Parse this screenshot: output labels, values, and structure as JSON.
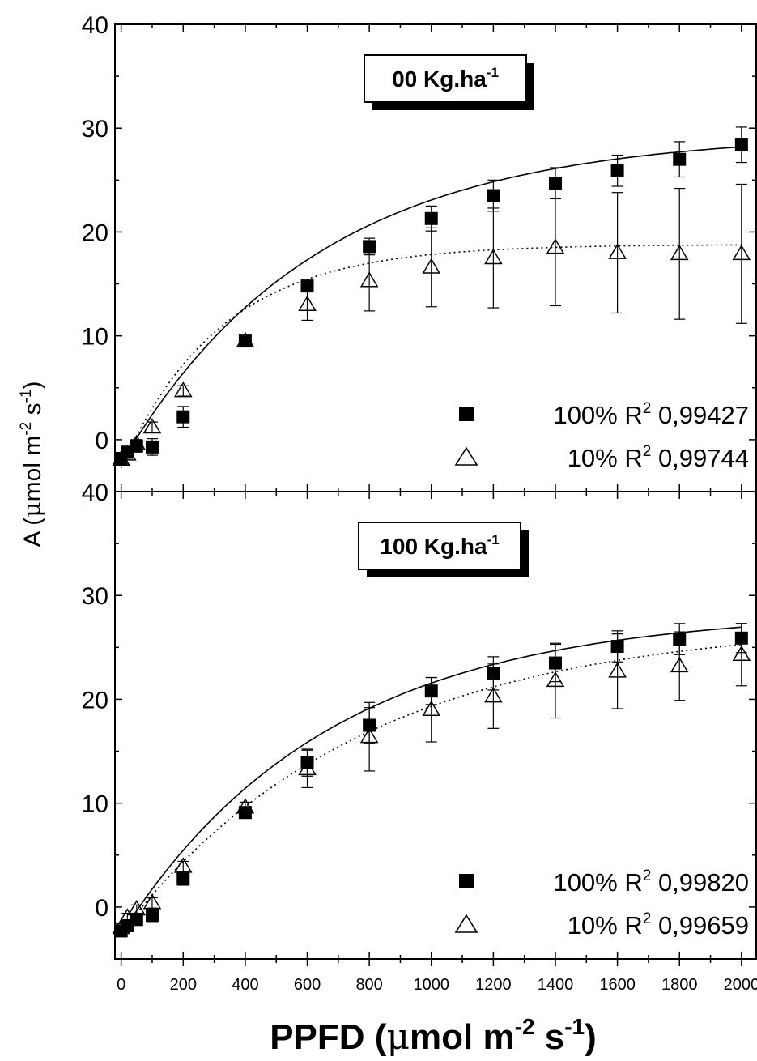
{
  "chart_data": [
    {
      "type": "scatter",
      "panel_label": "00 Kg.ha",
      "panel_label_sup": "-1",
      "ylim": [
        -5,
        40
      ],
      "xlim": [
        -20,
        2050
      ],
      "yticks": [
        "0",
        "10",
        "20",
        "30",
        "40"
      ],
      "xticks": [],
      "series": [
        {
          "name": "100%",
          "r2_label": "R",
          "r2_sup": "2",
          "r2_value": "0,99427",
          "marker": "filled-square",
          "line": "solid",
          "points": [
            {
              "x": 0,
              "y": -1.8,
              "err": 0.5
            },
            {
              "x": 20,
              "y": -1.2,
              "err": 0.5
            },
            {
              "x": 50,
              "y": -0.6,
              "err": 0.6
            },
            {
              "x": 100,
              "y": -0.7,
              "err": 0.8
            },
            {
              "x": 200,
              "y": 2.2,
              "err": 1.0
            },
            {
              "x": 400,
              "y": 9.5,
              "err": 0.5
            },
            {
              "x": 600,
              "y": 14.8,
              "err": 0.4
            },
            {
              "x": 800,
              "y": 18.6,
              "err": 0.8
            },
            {
              "x": 1000,
              "y": 21.3,
              "err": 1.2
            },
            {
              "x": 1200,
              "y": 23.5,
              "err": 1.5
            },
            {
              "x": 1400,
              "y": 24.7,
              "err": 1.5
            },
            {
              "x": 1600,
              "y": 25.9,
              "err": 1.5
            },
            {
              "x": 1800,
              "y": 27.0,
              "err": 1.7
            },
            {
              "x": 2000,
              "y": 28.4,
              "err": 1.7
            }
          ],
          "fit": {
            "amax": 29.5,
            "rd": 2.3,
            "k": 0.0016
          }
        },
        {
          "name": "10%",
          "r2_label": "R",
          "r2_sup": "2",
          "r2_value": "0,99744",
          "marker": "open-triangle",
          "line": "dotted",
          "points": [
            {
              "x": 0,
              "y": -1.9,
              "err": 0.4
            },
            {
              "x": 20,
              "y": -1.4,
              "err": 0.4
            },
            {
              "x": 50,
              "y": -0.4,
              "err": 0.4
            },
            {
              "x": 100,
              "y": 1.2,
              "err": 0.5
            },
            {
              "x": 200,
              "y": 4.7,
              "err": 0.5
            },
            {
              "x": 400,
              "y": 9.5,
              "err": 0.5
            },
            {
              "x": 600,
              "y": 13.0,
              "err": 1.5
            },
            {
              "x": 800,
              "y": 15.3,
              "err": 2.9
            },
            {
              "x": 1000,
              "y": 16.6,
              "err": 3.8
            },
            {
              "x": 1200,
              "y": 17.5,
              "err": 4.8
            },
            {
              "x": 1400,
              "y": 18.5,
              "err": 5.6
            },
            {
              "x": 1600,
              "y": 18.0,
              "err": 5.8
            },
            {
              "x": 1800,
              "y": 17.9,
              "err": 6.3
            },
            {
              "x": 2000,
              "y": 17.9,
              "err": 6.7
            }
          ],
          "fit": {
            "amax": 18.8,
            "rd": 2.7,
            "k": 0.0031
          }
        }
      ]
    },
    {
      "type": "scatter",
      "panel_label": "100 Kg.ha",
      "panel_label_sup": "-1",
      "ylim": [
        -5,
        40
      ],
      "xlim": [
        -20,
        2050
      ],
      "yticks": [
        "0",
        "10",
        "20",
        "30",
        "40"
      ],
      "xticks": [
        "0",
        "200",
        "400",
        "600",
        "800",
        "1000",
        "1200",
        "1400",
        "1600",
        "1800",
        "2000"
      ],
      "series": [
        {
          "name": "100%",
          "r2_label": "R",
          "r2_sup": "2",
          "r2_value": "0,99820",
          "marker": "filled-square",
          "line": "solid",
          "points": [
            {
              "x": 0,
              "y": -2.3,
              "err": 0.5
            },
            {
              "x": 20,
              "y": -1.8,
              "err": 0.5
            },
            {
              "x": 50,
              "y": -1.2,
              "err": 0.5
            },
            {
              "x": 100,
              "y": -0.8,
              "err": 0.6
            },
            {
              "x": 200,
              "y": 2.7,
              "err": 0.6
            },
            {
              "x": 400,
              "y": 9.1,
              "err": 0.5
            },
            {
              "x": 600,
              "y": 13.9,
              "err": 1.3
            },
            {
              "x": 800,
              "y": 17.5,
              "err": 1.7
            },
            {
              "x": 1000,
              "y": 20.8,
              "err": 1.3
            },
            {
              "x": 1200,
              "y": 22.5,
              "err": 1.6
            },
            {
              "x": 1400,
              "y": 23.5,
              "err": 1.8
            },
            {
              "x": 1600,
              "y": 25.1,
              "err": 1.5
            },
            {
              "x": 1800,
              "y": 25.8,
              "err": 1.5
            },
            {
              "x": 2000,
              "y": 25.9,
              "err": 1.4
            }
          ],
          "fit": {
            "amax": 28.5,
            "rd": 2.6,
            "k": 0.0015
          }
        },
        {
          "name": "10%",
          "r2_label": "R",
          "r2_sup": "2",
          "r2_value": "0,99659",
          "marker": "open-triangle",
          "line": "dotted",
          "points": [
            {
              "x": 0,
              "y": -2.0,
              "err": 0.4
            },
            {
              "x": 20,
              "y": -1.0,
              "err": 0.4
            },
            {
              "x": 50,
              "y": -0.2,
              "err": 0.4
            },
            {
              "x": 100,
              "y": 0.4,
              "err": 0.5
            },
            {
              "x": 200,
              "y": 3.9,
              "err": 0.5
            },
            {
              "x": 400,
              "y": 9.6,
              "err": 0.5
            },
            {
              "x": 600,
              "y": 13.3,
              "err": 1.8
            },
            {
              "x": 800,
              "y": 16.4,
              "err": 3.3
            },
            {
              "x": 1000,
              "y": 19.0,
              "err": 3.1
            },
            {
              "x": 1200,
              "y": 20.3,
              "err": 3.1
            },
            {
              "x": 1400,
              "y": 21.8,
              "err": 3.6
            },
            {
              "x": 1600,
              "y": 22.7,
              "err": 3.6
            },
            {
              "x": 1800,
              "y": 23.2,
              "err": 3.3
            },
            {
              "x": 2000,
              "y": 24.3,
              "err": 3.0
            }
          ],
          "fit": {
            "amax": 27.5,
            "rd": 2.5,
            "k": 0.0013
          }
        }
      ]
    }
  ],
  "ylabel_prefix": "A (",
  "ylabel_mu": "μ",
  "ylabel_mid": "mol m",
  "ylabel_sup1": "-2",
  "ylabel_mid2": " s",
  "ylabel_sup2": "-1",
  "ylabel_suffix": ")",
  "xlabel_prefix": "PPFD (",
  "xlabel_mu": "μ",
  "xlabel_mid": "mol m",
  "xlabel_sup1": "-2",
  "xlabel_mid2": " s",
  "xlabel_sup2": "-1",
  "xlabel_suffix": ")"
}
